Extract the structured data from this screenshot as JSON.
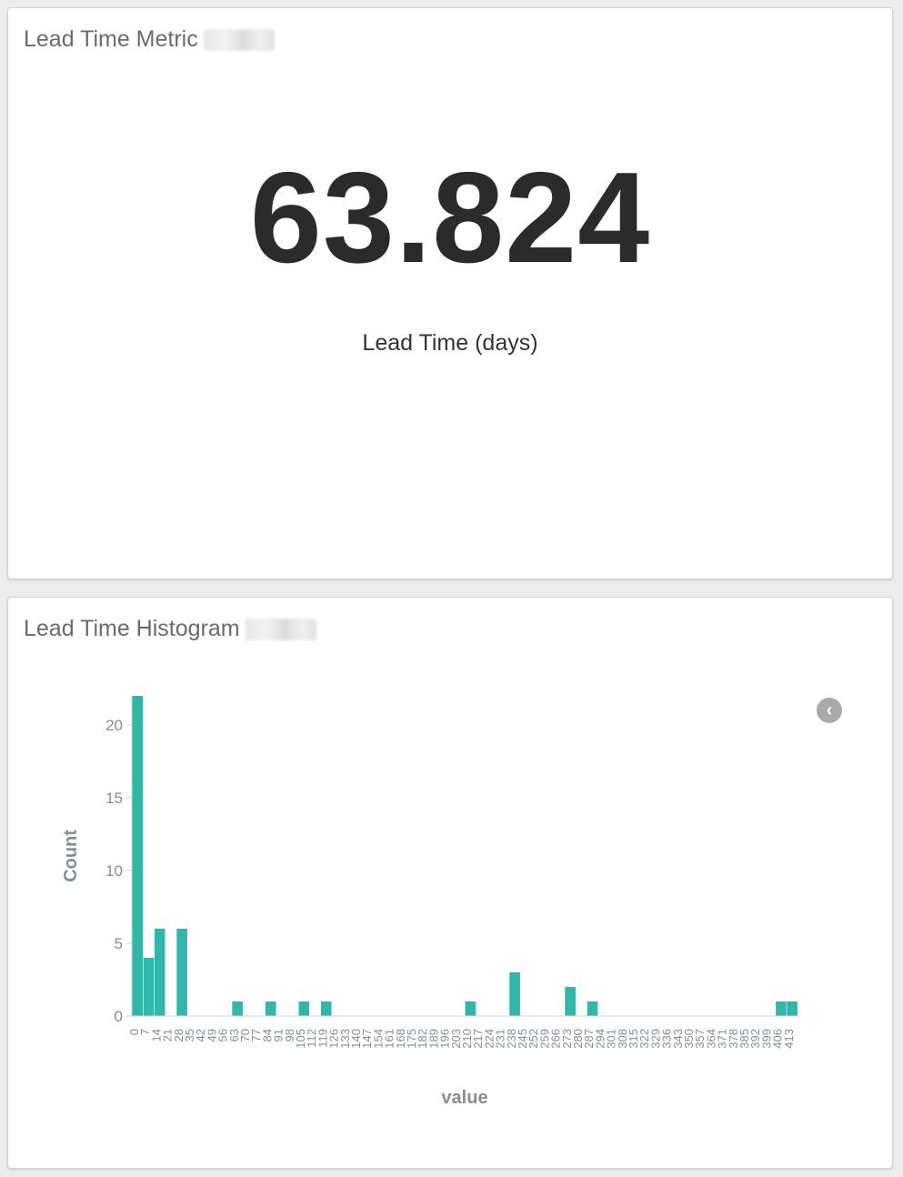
{
  "metric_panel": {
    "title": "Lead Time Metric",
    "value": "63.824",
    "label": "Lead Time (days)"
  },
  "histogram_panel": {
    "title": "Lead Time Histogram",
    "legend_toggle_icon": "chevron-left-icon"
  },
  "colors": {
    "bar": "#31b7aa",
    "axis_text": "#848e96",
    "axis_line": "#cfd5d8"
  },
  "chart_data": {
    "type": "bar",
    "xlabel": "value",
    "ylabel": "Count",
    "ylim": [
      0,
      22
    ],
    "yticks": [
      0,
      5,
      10,
      15,
      20
    ],
    "xticks": [
      "0",
      "7",
      "14",
      "21",
      "28",
      "35",
      "42",
      "49",
      "56",
      "63",
      "70",
      "77",
      "84",
      "91",
      "98",
      "105",
      "112",
      "119",
      "126",
      "133",
      "140",
      "147",
      "154",
      "161",
      "168",
      "175",
      "182",
      "189",
      "196",
      "203",
      "210",
      "217",
      "224",
      "231",
      "238",
      "245",
      "252",
      "259",
      "266",
      "273",
      "280",
      "287",
      "294",
      "301",
      "308",
      "315",
      "322",
      "329",
      "336",
      "343",
      "350",
      "357",
      "364",
      "371",
      "378",
      "385",
      "392",
      "399",
      "406",
      "413"
    ],
    "bin_width": 7,
    "x": [
      0,
      7,
      14,
      28,
      63,
      84,
      105,
      119,
      210,
      238,
      273,
      287,
      406,
      413
    ],
    "values": [
      22,
      4,
      6,
      6,
      1,
      1,
      1,
      1,
      1,
      3,
      2,
      1,
      1,
      1
    ]
  }
}
